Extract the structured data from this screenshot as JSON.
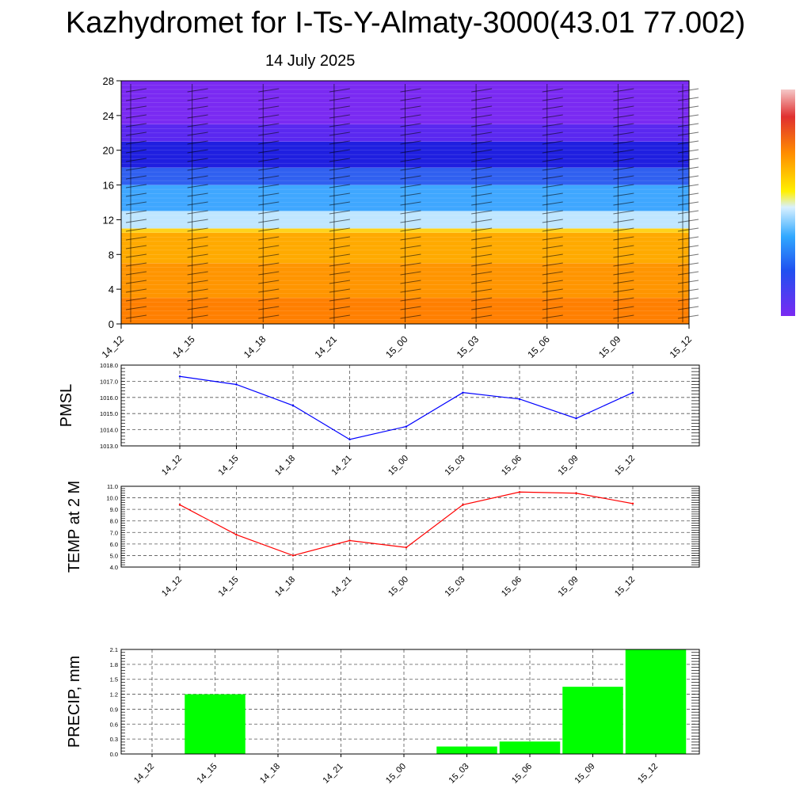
{
  "header": {
    "title": "Kazhydromet for I-Ts-Y-Almaty-3000(43.01 77.002)",
    "date": "14 July 2025"
  },
  "colors": {
    "pmsl_line": "#0000ff",
    "temp_line": "#ff0000",
    "precip_bar": "#00ff00",
    "grid": "#555555"
  },
  "chart_data": [
    {
      "type": "heatmap",
      "title": "Kazhydromet for I-Ts-Y-Almaty-3000(43.01 77.002)",
      "subtitle": "14 July 2025",
      "x_ticks": [
        "14_12",
        "14_15",
        "14_18",
        "14_21",
        "15_00",
        "15_03",
        "15_06",
        "15_09",
        "15_12"
      ],
      "y_ticks": [
        "0",
        "4",
        "8",
        "12",
        "16",
        "20",
        "24",
        "28"
      ],
      "ylim": [
        0,
        28
      ],
      "colorbar": "purple-blue-cyan-yellow-orange-red",
      "overlay": "wind barbs",
      "color_bands": [
        {
          "from": 0,
          "to": 3,
          "color": "#ff7f00"
        },
        {
          "from": 3,
          "to": 7,
          "color": "#ff9500"
        },
        {
          "from": 7,
          "to": 10.5,
          "color": "#ffaa00"
        },
        {
          "from": 10.5,
          "to": 11,
          "color": "#ffd21a"
        },
        {
          "from": 11,
          "to": 13,
          "color": "#bfe6ff"
        },
        {
          "from": 13,
          "to": 16,
          "color": "#3fa7ff"
        },
        {
          "from": 16,
          "to": 18,
          "color": "#3060f0"
        },
        {
          "from": 18,
          "to": 21,
          "color": "#1f1fe0"
        },
        {
          "from": 21,
          "to": 23,
          "color": "#5a28f0"
        },
        {
          "from": 23,
          "to": 28,
          "color": "#7a2af2"
        }
      ]
    },
    {
      "type": "line",
      "ylabel": "PMSL",
      "x": [
        "14_12",
        "14_15",
        "14_18",
        "14_21",
        "15_00",
        "15_03",
        "15_06",
        "15_09",
        "15_12"
      ],
      "series": [
        {
          "values": [
            1017.3,
            1016.8,
            1015.5,
            1013.4,
            1014.2,
            1016.3,
            1015.9,
            1014.7,
            1016.3
          ]
        }
      ],
      "y_ticks": [
        "1013.0",
        "1014.0",
        "1015.0",
        "1016.0",
        "1017.0",
        "1018.0"
      ],
      "ylim": [
        1013.0,
        1018.0
      ],
      "grid": true
    },
    {
      "type": "line",
      "ylabel": "TEMP at 2 M",
      "x": [
        "14_12",
        "14_15",
        "14_18",
        "14_21",
        "15_00",
        "15_03",
        "15_06",
        "15_09",
        "15_12"
      ],
      "series": [
        {
          "values": [
            9.4,
            6.8,
            5.0,
            6.3,
            5.7,
            9.4,
            10.5,
            10.4,
            9.5
          ]
        }
      ],
      "y_ticks": [
        "4.0",
        "5.0",
        "6.0",
        "7.0",
        "8.0",
        "9.0",
        "10.0",
        "11.0"
      ],
      "ylim": [
        4.0,
        11.0
      ],
      "grid": true
    },
    {
      "type": "bar",
      "ylabel": "PRECIP, mm",
      "categories": [
        "14_12",
        "14_15",
        "14_18",
        "14_21",
        "15_00",
        "15_03",
        "15_06",
        "15_09",
        "15_12"
      ],
      "values": [
        0.0,
        1.2,
        0.0,
        0.0,
        0.0,
        0.15,
        0.25,
        1.35,
        2.1
      ],
      "y_ticks": [
        "0.0",
        "0.3",
        "0.6",
        "0.9",
        "1.2",
        "1.5",
        "1.8",
        "2.1"
      ],
      "ylim": [
        0.0,
        2.1
      ],
      "grid": true
    }
  ]
}
